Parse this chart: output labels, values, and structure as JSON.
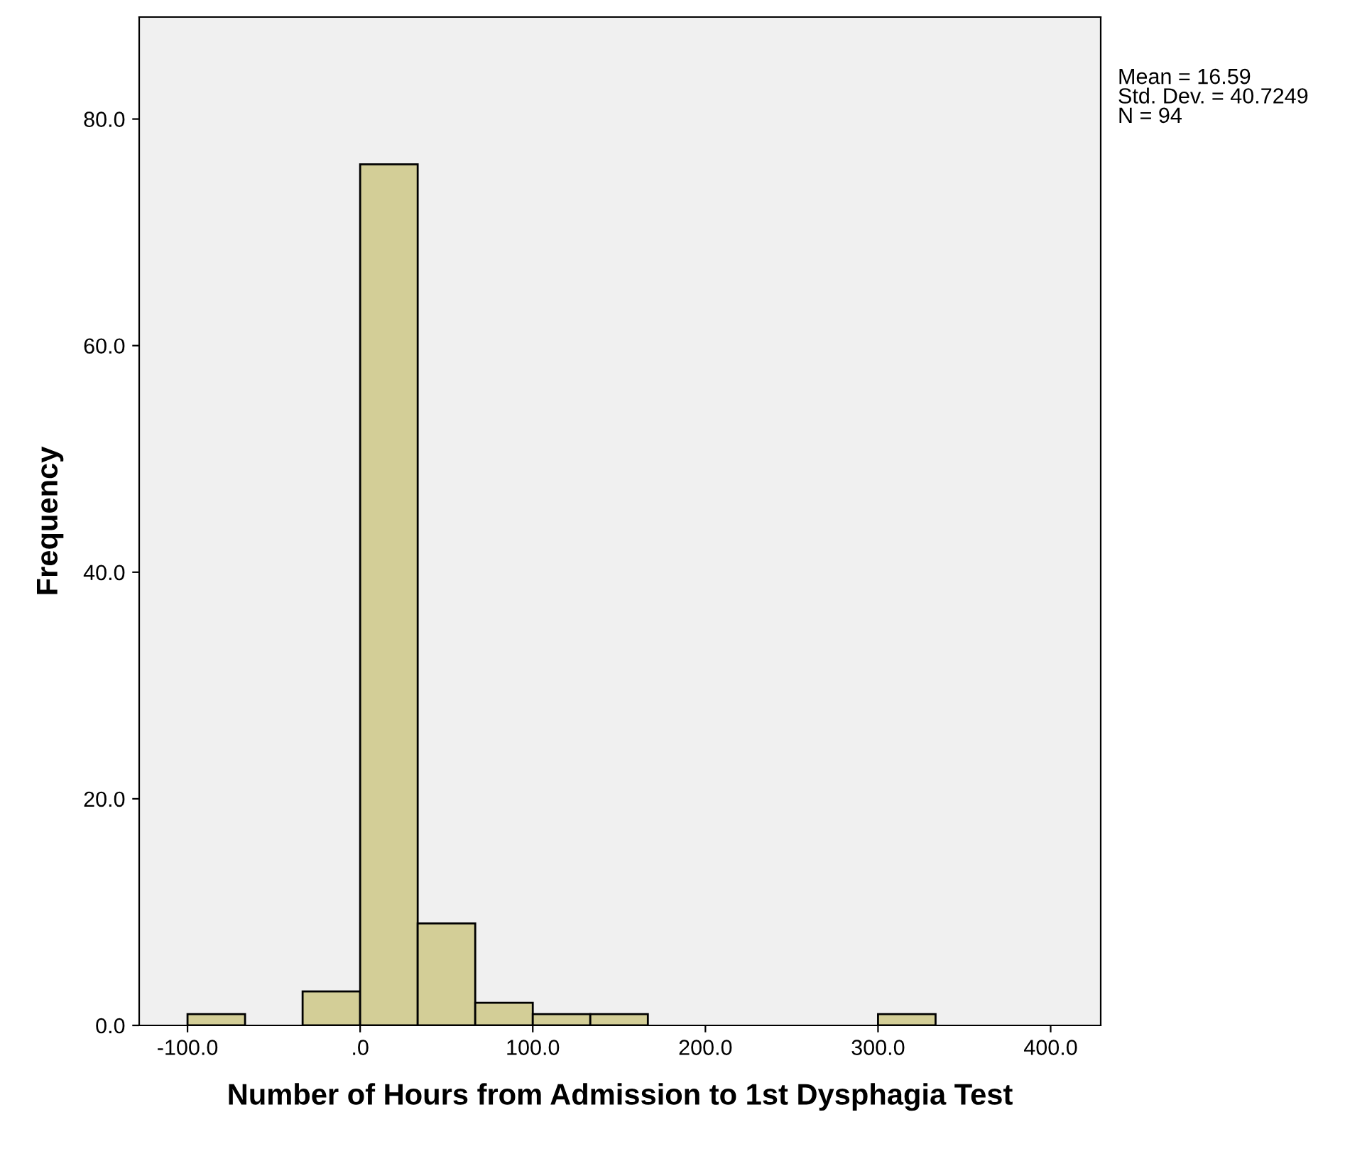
{
  "chart_data": {
    "type": "histogram",
    "xlabel": "Number of Hours from Admission to 1st Dysphagia Test",
    "ylabel": "Frequency",
    "bins": [
      -100,
      -66.67,
      -33.33,
      0,
      33.33,
      66.67,
      100,
      133.33,
      166.67,
      200,
      233.33,
      266.67,
      300,
      333.33
    ],
    "values": [
      1,
      0,
      3,
      76,
      9,
      2,
      1,
      1,
      0,
      0,
      0,
      0,
      1
    ],
    "color": "#d3ce97",
    "xlim": [
      -128,
      429
    ],
    "ylim": [
      0,
      89
    ],
    "xticks": [
      {
        "value": -100,
        "label": "-100.0"
      },
      {
        "value": 0,
        "label": ".0"
      },
      {
        "value": 100,
        "label": "100.0"
      },
      {
        "value": 200,
        "label": "200.0"
      },
      {
        "value": 300,
        "label": "300.0"
      },
      {
        "value": 400,
        "label": "400.0"
      }
    ],
    "yticks": [
      {
        "value": 0,
        "label": "0.0"
      },
      {
        "value": 20,
        "label": "20.0"
      },
      {
        "value": 40,
        "label": "40.0"
      },
      {
        "value": 60,
        "label": "60.0"
      },
      {
        "value": 80,
        "label": "80.0"
      }
    ],
    "annotations": [
      "Mean = 16.59\nStd. Dev. = 40.7249\nN = 94"
    ],
    "grid": false
  }
}
